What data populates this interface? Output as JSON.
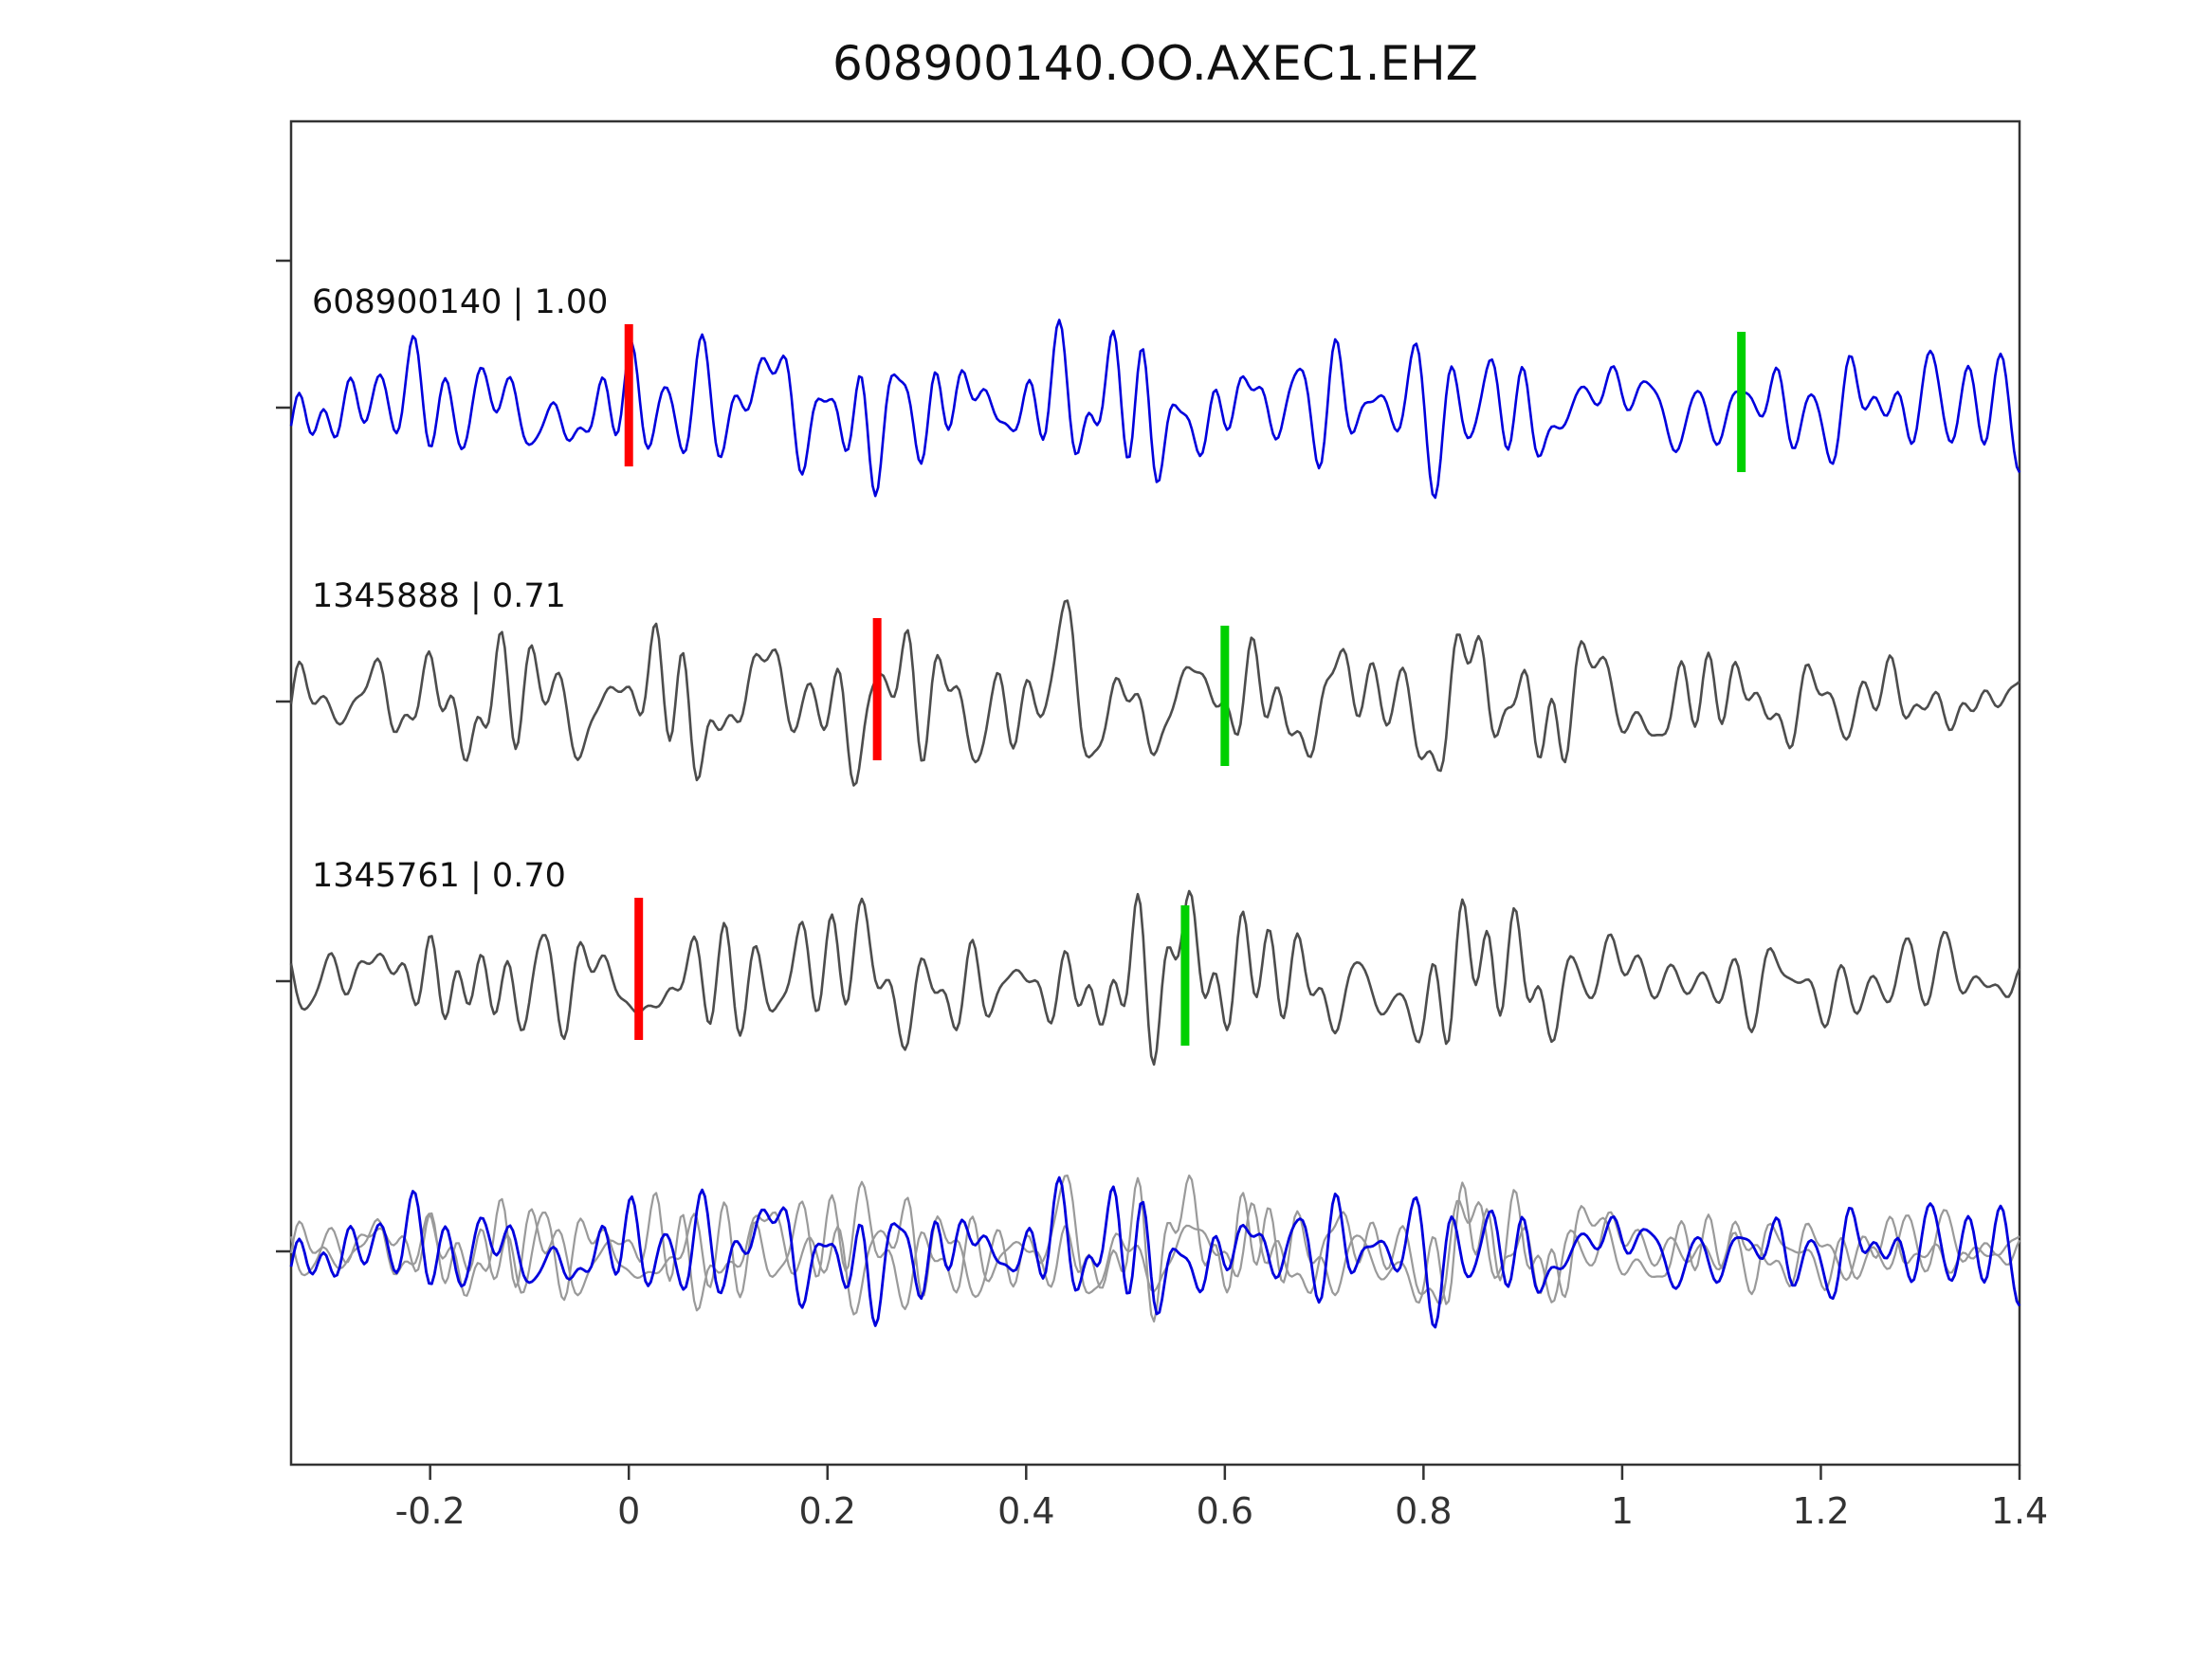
{
  "title": "608900140.OO.AXEC1.EHZ",
  "chart_data": {
    "type": "line",
    "title": "608900140.OO.AXEC1.EHZ",
    "subtitle": "",
    "xlabel": "",
    "ylabel": "",
    "grid": false,
    "legend_position": "none",
    "xlim": [
      -0.34,
      1.4
    ],
    "x_ticks": [
      -0.2,
      0,
      0.2,
      0.4,
      0.6,
      0.8,
      1,
      1.2,
      1.4
    ],
    "x_tick_labels": [
      "-0.2",
      "0",
      "0.2",
      "0.4",
      "0.6",
      "0.8",
      "1",
      "1.2",
      "1.4"
    ],
    "marker_colors": {
      "red": "#ff0000",
      "green": "#00d000"
    },
    "traces": [
      {
        "id": "608900140",
        "label": "608900140 | 1.00",
        "correlation": 1.0,
        "color": "#0000dd",
        "pick_red_x": 0.0,
        "pick_green_x": 1.12,
        "seed": 7,
        "amplitude": 1.0
      },
      {
        "id": "1345888",
        "label": "1345888 | 0.71",
        "correlation": 0.71,
        "color": "#4d4d4d",
        "pick_red_x": 0.25,
        "pick_green_x": 0.6,
        "seed": 13,
        "amplitude": 1.12
      },
      {
        "id": "1345761",
        "label": "1345761 | 0.70",
        "correlation": 0.7,
        "color": "#4d4d4d",
        "pick_red_x": 0.01,
        "pick_green_x": 0.56,
        "seed": 21,
        "amplitude": 1.0
      }
    ],
    "overlay_traces": [
      {
        "color": "#9a9a9a",
        "seed": 13
      },
      {
        "color": "#9a9a9a",
        "seed": 21
      },
      {
        "color": "#0000dd",
        "seed": 7
      }
    ]
  }
}
